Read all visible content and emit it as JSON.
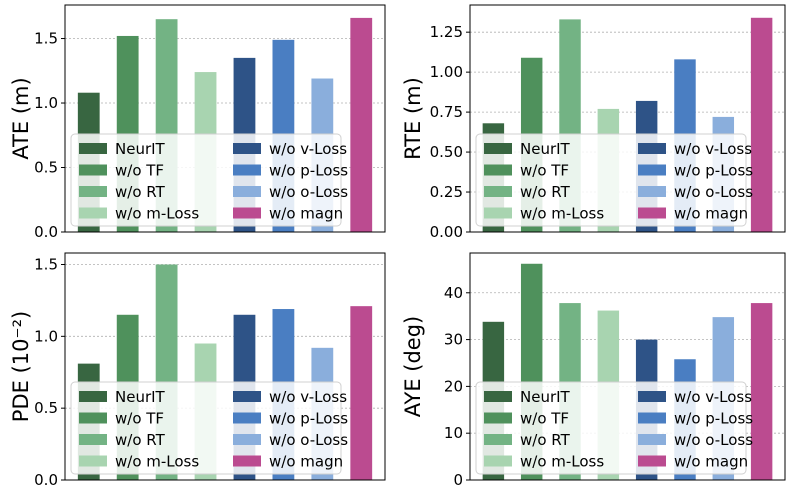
{
  "legend_labels": [
    "NeurIT",
    "w/o TF",
    "w/o RT",
    "w/o m-Loss",
    "w/o v-Loss",
    "w/o p-Loss",
    "w/o o-Loss",
    "w/o magn"
  ],
  "colors": [
    "#386641",
    "#4f915c",
    "#73b384",
    "#a8d4b0",
    "#2e5387",
    "#4a7ec2",
    "#8aaedc",
    "#bb4b90"
  ],
  "chart_data": [
    {
      "type": "bar",
      "categories": [
        "NeurIT",
        "w/o TF",
        "w/o RT",
        "w/o m-Loss",
        "w/o v-Loss",
        "w/o p-Loss",
        "w/o o-Loss",
        "w/o magn"
      ],
      "values": [
        1.08,
        1.52,
        1.65,
        1.24,
        1.35,
        1.49,
        1.19,
        1.66
      ],
      "ylabel": "ATE (m)",
      "ylim": [
        0,
        1.76
      ],
      "yticks": [
        0.0,
        0.5,
        1.0,
        1.5
      ],
      "ytick_labels": [
        "0.0",
        "0.5",
        "1.0",
        "1.5"
      ],
      "grid": "horizontal-dotted",
      "legend": "lower-center"
    },
    {
      "type": "bar",
      "categories": [
        "NeurIT",
        "w/o TF",
        "w/o RT",
        "w/o m-Loss",
        "w/o v-Loss",
        "w/o p-Loss",
        "w/o o-Loss",
        "w/o magn"
      ],
      "values": [
        0.68,
        1.09,
        1.33,
        0.77,
        0.82,
        1.08,
        0.72,
        1.34
      ],
      "ylabel": "RTE (m)",
      "ylim": [
        0,
        1.42
      ],
      "yticks": [
        0.0,
        0.25,
        0.5,
        0.75,
        1.0,
        1.25
      ],
      "ytick_labels": [
        "0.00",
        "0.25",
        "0.50",
        "0.75",
        "1.00",
        "1.25"
      ],
      "grid": "horizontal-dotted",
      "legend": "lower-center"
    },
    {
      "type": "bar",
      "categories": [
        "NeurIT",
        "w/o TF",
        "w/o RT",
        "w/o m-Loss",
        "w/o v-Loss",
        "w/o p-Loss",
        "w/o o-Loss",
        "w/o magn"
      ],
      "values": [
        0.81,
        1.15,
        1.5,
        0.95,
        1.15,
        1.19,
        0.92,
        1.21
      ],
      "ylabel": "PDE (10⁻²)",
      "ylim": [
        0,
        1.58
      ],
      "yticks": [
        0.0,
        0.5,
        1.0,
        1.5
      ],
      "ytick_labels": [
        "0.0",
        "0.5",
        "1.0",
        "1.5"
      ],
      "grid": "horizontal-dotted",
      "legend": "lower-center"
    },
    {
      "type": "bar",
      "categories": [
        "NeurIT",
        "w/o TF",
        "w/o RT",
        "w/o m-Loss",
        "w/o v-Loss",
        "w/o p-Loss",
        "w/o o-Loss",
        "w/o magn"
      ],
      "values": [
        33.8,
        46.2,
        37.8,
        36.2,
        30.0,
        25.8,
        34.8,
        37.8
      ],
      "ylabel": "AYE (deg)",
      "ylim": [
        0,
        48.5
      ],
      "yticks": [
        0,
        10,
        20,
        30,
        40
      ],
      "ytick_labels": [
        "0",
        "10",
        "20",
        "30",
        "40"
      ],
      "grid": "horizontal-dotted",
      "legend": "lower-center"
    }
  ]
}
